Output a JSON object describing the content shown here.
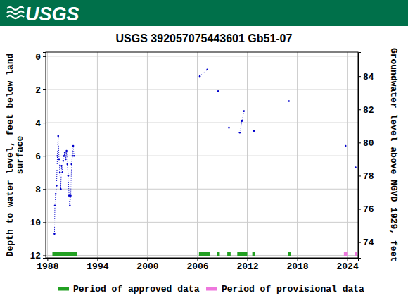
{
  "header": {
    "logo": "USGS"
  },
  "chart_data": {
    "type": "line",
    "title": "USGS 392057075443601 Gb51-07",
    "ylabel": [
      "Depth to water level, feet below land",
      "surface"
    ],
    "y2label": "Groundwater level above NGVD 1929, feet",
    "xlim": [
      1987.8,
      2025.3
    ],
    "xticks": [
      1988,
      1994,
      2000,
      2006,
      2012,
      2018,
      2024
    ],
    "ylim": [
      12.15,
      -0.25
    ],
    "yticks": [
      0,
      2,
      4,
      6,
      8,
      10,
      12
    ],
    "y2lim": [
      73.05,
      85.45
    ],
    "y2ticks": [
      74,
      76,
      78,
      80,
      82,
      84
    ],
    "grid": true,
    "legend": "bottom",
    "series": [
      {
        "name": "Depth to water level",
        "color": "#0000cc",
        "marker": "point",
        "line_style": "dotted",
        "x": [
          1988.85,
          1988.9,
          1989.0,
          1989.1,
          1989.2,
          1989.3,
          1989.4,
          1989.5,
          1989.6,
          1989.7,
          1989.8,
          1989.9,
          1990.0,
          1990.1,
          1990.2,
          1990.3,
          1990.4,
          1990.5,
          1990.6,
          1990.7,
          1990.8,
          1990.9,
          1991.0,
          1991.1,
          1991.2,
          1998.0,
          2006.3,
          2007.2,
          2007.8,
          2008.5,
          2009.2,
          2009.8,
          2010.4,
          2011.1,
          2011.35,
          2011.6,
          2012.2,
          2012.8,
          2015.0,
          2017.0,
          2020.0,
          2023.8,
          2024.4,
          2025.0
        ],
        "values": [
          10.7,
          9.0,
          8.3,
          7.8,
          6.0,
          4.8,
          6.2,
          7.0,
          8.0,
          6.6,
          7.0,
          6.3,
          6.0,
          5.8,
          6.2,
          5.7,
          6.5,
          7.2,
          8.4,
          9.0,
          8.4,
          6.5,
          6.0,
          5.4,
          6.0,
          null,
          1.2,
          0.8,
          null,
          2.1,
          null,
          4.3,
          null,
          4.6,
          3.9,
          3.3,
          null,
          4.5,
          null,
          2.7,
          null,
          5.4,
          null,
          6.7
        ]
      }
    ],
    "periods": [
      {
        "name": "Period of approved data",
        "color": "#22a022",
        "ranges": [
          [
            1988.6,
            1991.6
          ],
          [
            2006.2,
            2007.5
          ],
          [
            2008.4,
            2008.7
          ],
          [
            2009.6,
            2010.0
          ],
          [
            2010.8,
            2012.0
          ],
          [
            2012.6,
            2012.9
          ],
          [
            2016.9,
            2017.2
          ]
        ]
      },
      {
        "name": "Period of provisional data",
        "color": "#ee77dd",
        "ranges": [
          [
            2023.6,
            2024.0
          ],
          [
            2024.9,
            2025.2
          ]
        ]
      }
    ]
  }
}
